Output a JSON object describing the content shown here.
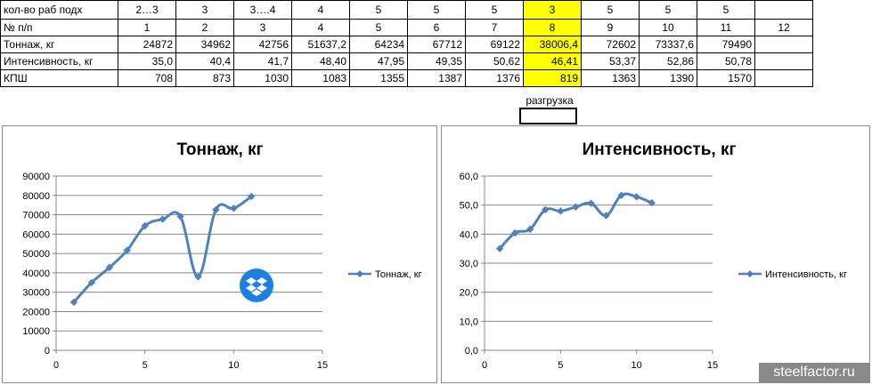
{
  "table": {
    "labels": [
      "кол-во раб подх",
      "№ п/п",
      "Тоннаж, кг",
      "Интенсивность, кг",
      "КПШ"
    ],
    "rows": [
      [
        "2…3",
        "3",
        "3….4",
        "4",
        "5",
        "5",
        "5",
        "3",
        "5",
        "5",
        "5",
        ""
      ],
      [
        "1",
        "2",
        "3",
        "4",
        "5",
        "6",
        "7",
        "8",
        "9",
        "10",
        "11",
        "12"
      ],
      [
        "24872",
        "34962",
        "42756",
        "51637,2",
        "64234",
        "67712",
        "69122",
        "38006,4",
        "72602",
        "73337,6",
        "79490",
        ""
      ],
      [
        "35,0",
        "40,4",
        "41,7",
        "48,40",
        "47,95",
        "49,35",
        "50,62",
        "46,41",
        "53,37",
        "52,86",
        "50,78",
        ""
      ],
      [
        "708",
        "873",
        "1030",
        "1083",
        "1355",
        "1387",
        "1376",
        "819",
        "1363",
        "1390",
        "1570",
        ""
      ]
    ],
    "highlight_color": "#ffff00",
    "note": "разгрузка"
  },
  "chart_data": [
    {
      "type": "line",
      "title": "Тоннаж, кг",
      "x": [
        1,
        2,
        3,
        4,
        5,
        6,
        7,
        8,
        9,
        10,
        11
      ],
      "series": [
        {
          "name": "Тоннаж, кг",
          "values": [
            24872,
            34962,
            42756,
            51637.2,
            64234,
            67712,
            69122,
            38006.4,
            72602,
            73337.6,
            79490
          ]
        }
      ],
      "xlim": [
        0,
        15
      ],
      "ylim": [
        0,
        90000
      ],
      "xticks": [
        "0",
        "5",
        "10",
        "15"
      ],
      "yticks": [
        "0",
        "10000",
        "20000",
        "30000",
        "40000",
        "50000",
        "60000",
        "70000",
        "80000",
        "90000"
      ],
      "grid": true,
      "smooth": true,
      "legend": "right",
      "color": "#4f81bd"
    },
    {
      "type": "line",
      "title": "Интенсивность, кг",
      "x": [
        1,
        2,
        3,
        4,
        5,
        6,
        7,
        8,
        9,
        10,
        11
      ],
      "series": [
        {
          "name": "Интенсивность, кг",
          "values": [
            35.0,
            40.4,
            41.7,
            48.4,
            47.95,
            49.35,
            50.62,
            46.41,
            53.37,
            52.86,
            50.78
          ]
        }
      ],
      "xlim": [
        0,
        15
      ],
      "ylim": [
        0,
        60
      ],
      "xticks": [
        "0",
        "5",
        "10",
        "15"
      ],
      "yticks": [
        "0,0",
        "10,0",
        "20,0",
        "30,0",
        "40,0",
        "50,0",
        "60,0"
      ],
      "grid": true,
      "smooth": true,
      "legend": "right",
      "color": "#4f81bd"
    }
  ],
  "watermark": "steelfactor.ru",
  "overlay_icon": "dropbox-icon"
}
